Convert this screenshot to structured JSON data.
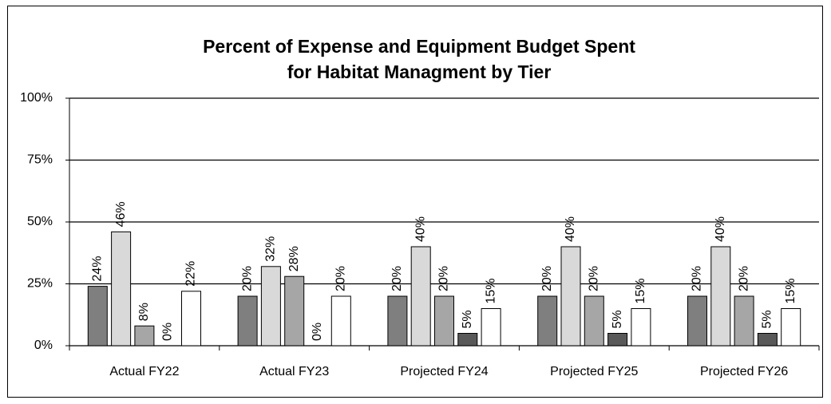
{
  "chart_data": {
    "type": "bar",
    "title": [
      "Percent of Expense and Equipment Budget Spent",
      "for Habitat Managment by Tier"
    ],
    "categories": [
      "Actual FY22",
      "Actual FY23",
      "Projected FY24",
      "Projected FY25",
      "Projected FY26"
    ],
    "series": [
      {
        "color": "#7f7f7f",
        "values": [
          24,
          20,
          20,
          20,
          20
        ],
        "value_labels": [
          "24%",
          "20%",
          "20%",
          "20%",
          "20%"
        ]
      },
      {
        "color": "#d9d9d9",
        "values": [
          46,
          32,
          40,
          40,
          40
        ],
        "value_labels": [
          "46%",
          "32%",
          "40%",
          "40%",
          "40%"
        ]
      },
      {
        "color": "#a6a6a6",
        "values": [
          8,
          28,
          20,
          20,
          20
        ],
        "value_labels": [
          "8%",
          "28%",
          "20%",
          "20%",
          "20%"
        ]
      },
      {
        "color": "#595959",
        "values": [
          0,
          0,
          5,
          5,
          5
        ],
        "value_labels": [
          "0%",
          "0%",
          "5%",
          "5%",
          "5%"
        ]
      },
      {
        "color": "#ffffff",
        "values": [
          22,
          20,
          15,
          15,
          15
        ],
        "value_labels": [
          "22%",
          "20%",
          "15%",
          "15%",
          "15%"
        ]
      }
    ],
    "ylim": [
      0,
      100
    ],
    "yticks": [
      {
        "value": 0,
        "label": "0%"
      },
      {
        "value": 25,
        "label": "25%"
      },
      {
        "value": 50,
        "label": "50%"
      },
      {
        "value": 75,
        "label": "75%"
      },
      {
        "value": 100,
        "label": "100%"
      }
    ],
    "grid": true
  }
}
